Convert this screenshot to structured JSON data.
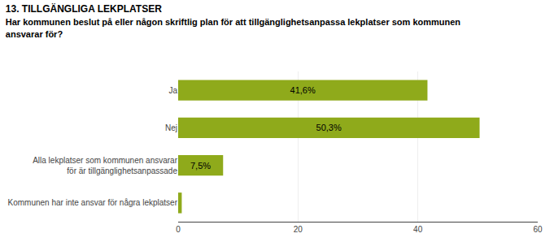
{
  "chart_data": {
    "type": "bar",
    "orientation": "horizontal",
    "title": "13. TILLGÄNGLIGA LEKPLATSER",
    "subtitle": "Har kommunen beslut på eller någon skriftlig plan för att tillgänglighetsanpassa lekplatser som kommunen\nansvarar för?",
    "categories": [
      "Ja",
      "Nej",
      "Alla lekplatser som kommunen ansvarar\nför är tillgänglighetsanpassade",
      "Kommunen har inte ansvar för några lekplatser"
    ],
    "values": [
      41.6,
      50.3,
      7.5,
      0.6
    ],
    "value_labels": [
      "41,6%",
      "50,3%",
      "7,5%",
      null
    ],
    "data_labels": true,
    "color": "#8faa1b",
    "xlim": [
      0,
      60
    ],
    "xticks": [
      0,
      20,
      40,
      60
    ],
    "grid": true
  }
}
